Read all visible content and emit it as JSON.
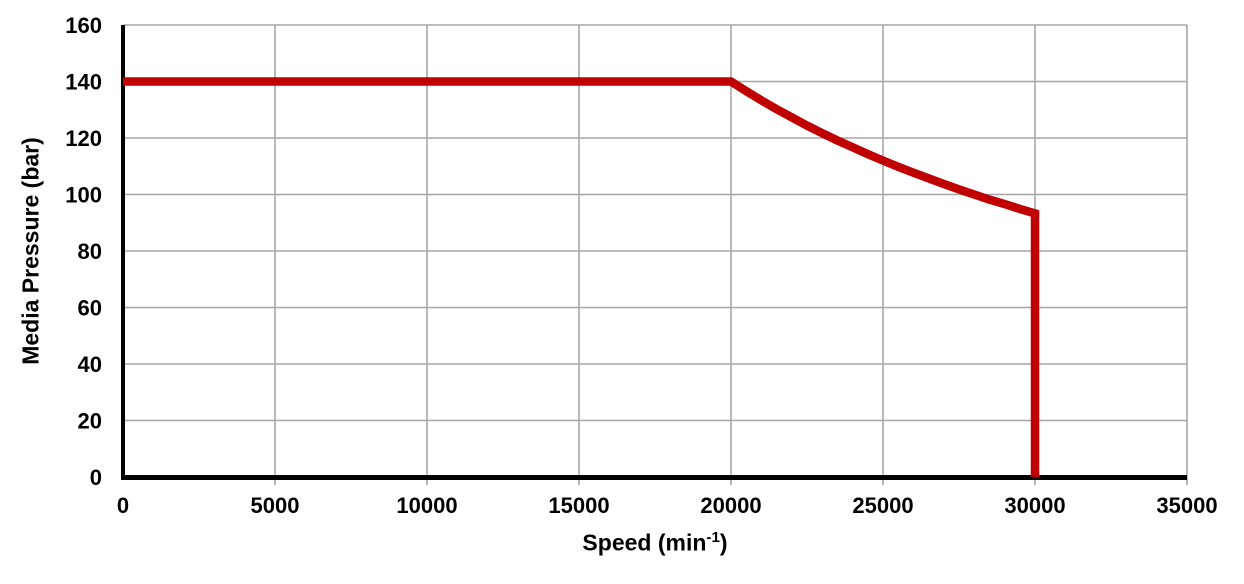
{
  "chart_data": {
    "type": "line",
    "title": "",
    "xlabel": "Speed (min⁻¹)",
    "xlabel_prefix": "Speed (min",
    "xlabel_sup": "-1",
    "xlabel_suffix": ")",
    "ylabel": "Media Pressure (bar)",
    "xlim": [
      0,
      35000
    ],
    "ylim": [
      0,
      160
    ],
    "x_ticks": [
      0,
      5000,
      10000,
      15000,
      20000,
      25000,
      30000,
      35000
    ],
    "y_ticks": [
      0,
      20,
      40,
      60,
      80,
      100,
      120,
      140,
      160
    ],
    "grid": true,
    "legend_position": "none",
    "series": [
      {
        "color": "#C00000",
        "line_width": 8.5,
        "points": [
          [
            0,
            140
          ],
          [
            20000,
            140
          ],
          [
            20500,
            136.6
          ],
          [
            21000,
            133.3
          ],
          [
            21500,
            130.2
          ],
          [
            22000,
            127.3
          ],
          [
            22500,
            124.4
          ],
          [
            23000,
            121.7
          ],
          [
            23500,
            119.1
          ],
          [
            24000,
            116.7
          ],
          [
            24500,
            114.3
          ],
          [
            25000,
            112.0
          ],
          [
            25500,
            109.8
          ],
          [
            26000,
            107.7
          ],
          [
            26500,
            105.7
          ],
          [
            27000,
            103.7
          ],
          [
            27500,
            101.8
          ],
          [
            28000,
            100.0
          ],
          [
            28500,
            98.2
          ],
          [
            29000,
            96.6
          ],
          [
            29500,
            94.9
          ],
          [
            30000,
            93.3
          ],
          [
            30000,
            0
          ]
        ]
      }
    ],
    "colors": {
      "line": "#C00000",
      "grid": "#A6A6A6",
      "axis": "#000000",
      "text": "#000000",
      "background": "#FFFFFF"
    }
  }
}
